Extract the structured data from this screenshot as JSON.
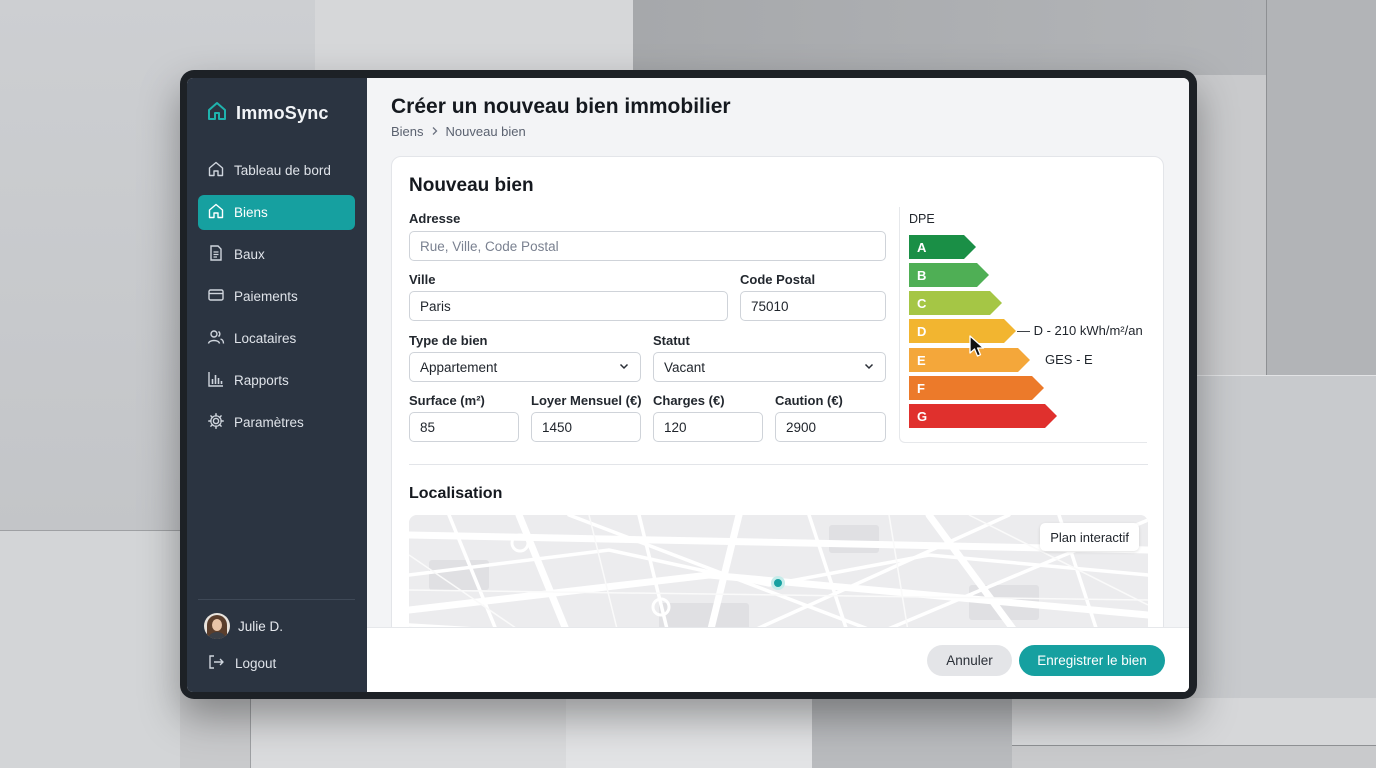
{
  "app": {
    "name": "ImmoSync"
  },
  "sidebar": {
    "items": [
      {
        "label": "Tableau de bord",
        "icon": "home-icon",
        "active": false
      },
      {
        "label": "Biens",
        "icon": "home-icon",
        "active": true
      },
      {
        "label": "Baux",
        "icon": "document-icon",
        "active": false
      },
      {
        "label": "Paiements",
        "icon": "credit-card-icon",
        "active": false
      },
      {
        "label": "Locataires",
        "icon": "users-icon",
        "active": false
      },
      {
        "label": "Rapports",
        "icon": "bar-chart-icon",
        "active": false
      },
      {
        "label": "Paramètres",
        "icon": "gear-icon",
        "active": false
      }
    ],
    "user": {
      "name": "Julie D."
    },
    "logout_label": "Logout"
  },
  "header": {
    "title": "Créer un nouveau bien immobilier",
    "breadcrumb": [
      "Biens",
      "Nouveau bien"
    ]
  },
  "form": {
    "title": "Nouveau bien",
    "address": {
      "label": "Adresse",
      "value": "",
      "placeholder": "Rue, Ville, Code Postal"
    },
    "city": {
      "label": "Ville",
      "value": "Paris"
    },
    "postal": {
      "label": "Code Postal",
      "value": "75010"
    },
    "type": {
      "label": "Type de bien",
      "value": "Appartement"
    },
    "status": {
      "label": "Statut",
      "value": "Vacant"
    },
    "surface": {
      "label": "Surface (m²)",
      "value": "85"
    },
    "rent": {
      "label": "Loyer Mensuel (€)",
      "value": "1450"
    },
    "charges": {
      "label": "Charges (€)",
      "value": "120"
    },
    "deposit": {
      "label": "Caution (€)",
      "value": "2900"
    }
  },
  "dpe": {
    "title": "DPE",
    "classes": [
      {
        "label": "A",
        "color": "#1a8f46"
      },
      {
        "label": "B",
        "color": "#4faf55"
      },
      {
        "label": "C",
        "color": "#a5c645"
      },
      {
        "label": "D",
        "color": "#f2b530"
      },
      {
        "label": "E",
        "color": "#f4a73a"
      },
      {
        "label": "F",
        "color": "#ec7a2a"
      },
      {
        "label": "G",
        "color": "#e0302d"
      }
    ],
    "selected": "D",
    "energy_note": "— D - 210 kWh/m²/an",
    "ges_note": "GES - E"
  },
  "location": {
    "title": "Localisation",
    "map_button": "Plan interactif"
  },
  "actions": {
    "cancel": "Annuler",
    "save": "Enregistrer le bien"
  },
  "colors": {
    "accent": "#16a0a0",
    "sidebar": "#2b3441"
  }
}
